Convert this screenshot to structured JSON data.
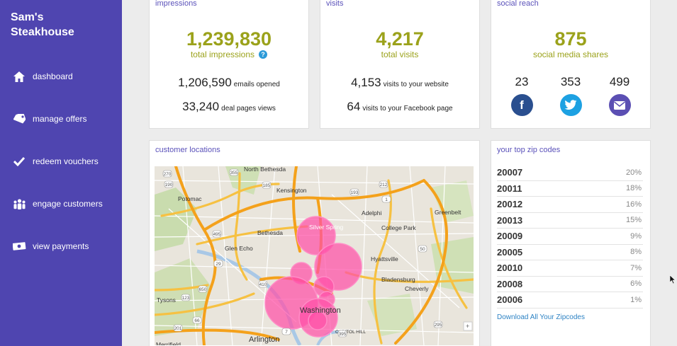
{
  "brand": {
    "name": "Sam's Steakhouse"
  },
  "nav": [
    {
      "label": "dashboard",
      "icon": "home-icon"
    },
    {
      "label": "manage offers",
      "icon": "tag-icon"
    },
    {
      "label": "redeem vouchers",
      "icon": "checkmark-icon"
    },
    {
      "label": "engage customers",
      "icon": "people-icon"
    },
    {
      "label": "view payments",
      "icon": "money-icon"
    }
  ],
  "impressions": {
    "title": "impressions",
    "total": "1,239,830",
    "total_label": "total impressions",
    "help": "?",
    "emails_value": "1,206,590",
    "emails_label": "emails opened",
    "deal_value": "33,240",
    "deal_label": "deal pages views"
  },
  "visits": {
    "title": "visits",
    "total": "4,217",
    "total_label": "total visits",
    "website_value": "4,153",
    "website_label": "visits to your website",
    "facebook_value": "64",
    "facebook_label": "visits to your Facebook page"
  },
  "social": {
    "title": "social reach",
    "total": "875",
    "total_label": "social media shares",
    "facebook_count": "23",
    "twitter_count": "353",
    "email_count": "499",
    "colors": {
      "facebook": "#2a4f8f",
      "twitter": "#1da1e2",
      "email": "#5b4fb3"
    }
  },
  "locations": {
    "title": "customer locations",
    "map_labels": [
      "North Bethesda",
      "Kensington",
      "Potomac",
      "Bethesda",
      "Silver Spring",
      "Adelphi",
      "College Park",
      "Greenbelt",
      "Glen Echo",
      "Hyattsville",
      "Bladensburg",
      "Cheverly",
      "Tysons",
      "Washington",
      "Arlington",
      "Merrifield",
      "CAPITOL HILL"
    ],
    "road_labels": [
      "270",
      "190",
      "355",
      "185",
      "212",
      "1",
      "193",
      "495",
      "50",
      "29",
      "66",
      "395",
      "7",
      "123",
      "650",
      "201",
      "295",
      "410"
    ]
  },
  "zips": {
    "title": "your top zip codes",
    "rows": [
      {
        "zip": "20007",
        "pct": "20%"
      },
      {
        "zip": "20011",
        "pct": "18%"
      },
      {
        "zip": "20012",
        "pct": "16%"
      },
      {
        "zip": "20013",
        "pct": "15%"
      },
      {
        "zip": "20009",
        "pct": "9%"
      },
      {
        "zip": "20005",
        "pct": "8%"
      },
      {
        "zip": "20010",
        "pct": "7%"
      },
      {
        "zip": "20008",
        "pct": "6%"
      },
      {
        "zip": "20006",
        "pct": "1%"
      }
    ],
    "download_label": "Download All Your Zipcodes"
  },
  "colors": {
    "sidebar": "#4f45b0",
    "accent": "#9ba21b",
    "title": "#5b52ba",
    "bubble": "#ff4fa8"
  }
}
